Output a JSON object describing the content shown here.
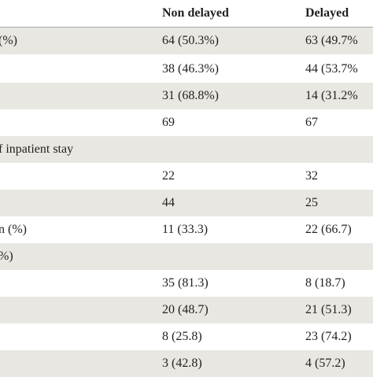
{
  "table": {
    "headers": [
      "",
      "Non delayed",
      "Delayed"
    ],
    "rows": [
      [
        "(%)",
        "64 (50.3%)",
        "63 (49.7%"
      ],
      [
        "",
        "38 (46.3%)",
        "44 (53.7%"
      ],
      [
        "",
        "31 (68.8%)",
        "14 (31.2%"
      ],
      [
        "",
        "69",
        "67"
      ],
      [
        "f inpatient stay",
        "",
        ""
      ],
      [
        "",
        "22",
        "32"
      ],
      [
        "",
        "44",
        "25"
      ],
      [
        "n (%)",
        "11 (33.3)",
        "22 (66.7)"
      ],
      [
        "%)",
        "",
        ""
      ],
      [
        "",
        "35 (81.3)",
        "8 (18.7)"
      ],
      [
        "",
        "20 (48.7)",
        "21 (51.3)"
      ],
      [
        "",
        "8 (25.8)",
        "23 (74.2)"
      ],
      [
        "",
        "3 (42.8)",
        "4 (57.2)"
      ]
    ]
  }
}
